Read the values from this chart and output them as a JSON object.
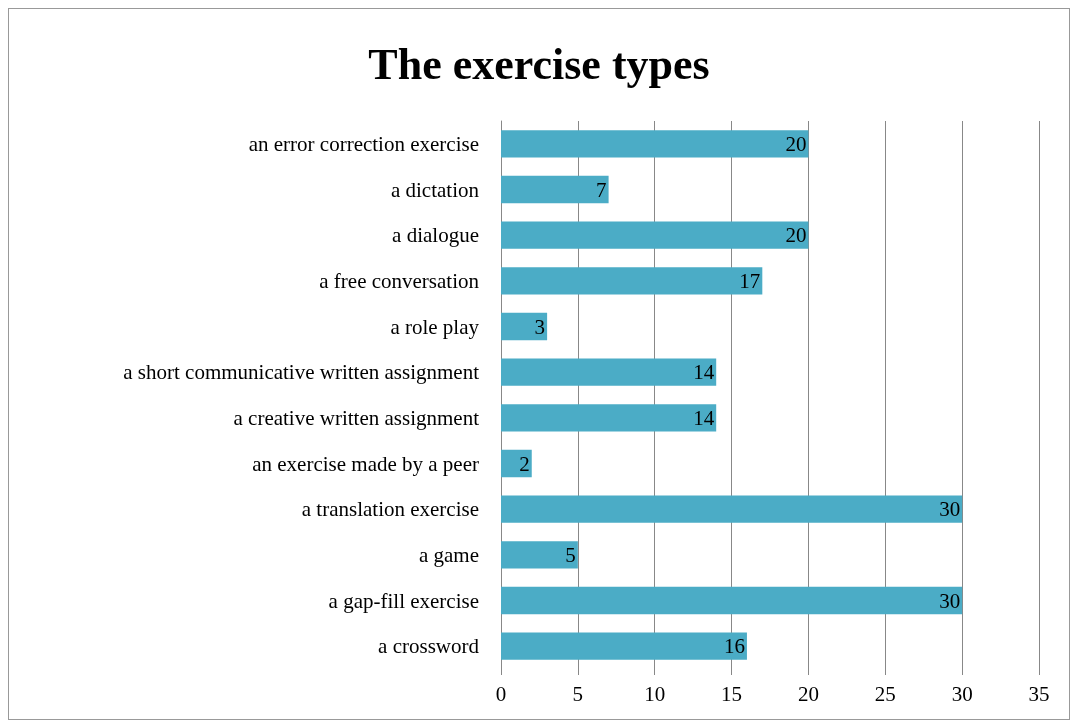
{
  "chart_data": {
    "type": "bar",
    "title": "The exercise types",
    "orientation": "horizontal",
    "categories": [
      "an error correction exercise",
      "a dictation",
      "a dialogue",
      "a free conversation",
      "a role play",
      "a short communicative written assignment",
      "a creative written assignment",
      "an exercise made by a peer",
      "a translation exercise",
      "a game",
      "a gap-fill exercise",
      "a crossword"
    ],
    "values": [
      20,
      7,
      20,
      17,
      3,
      14,
      14,
      2,
      30,
      5,
      30,
      16
    ],
    "color": "#4bacc6",
    "data_labels": true,
    "grid": "x",
    "xlim": [
      0,
      35
    ],
    "xticks": [
      0,
      5,
      10,
      15,
      20,
      25,
      30,
      35
    ]
  }
}
